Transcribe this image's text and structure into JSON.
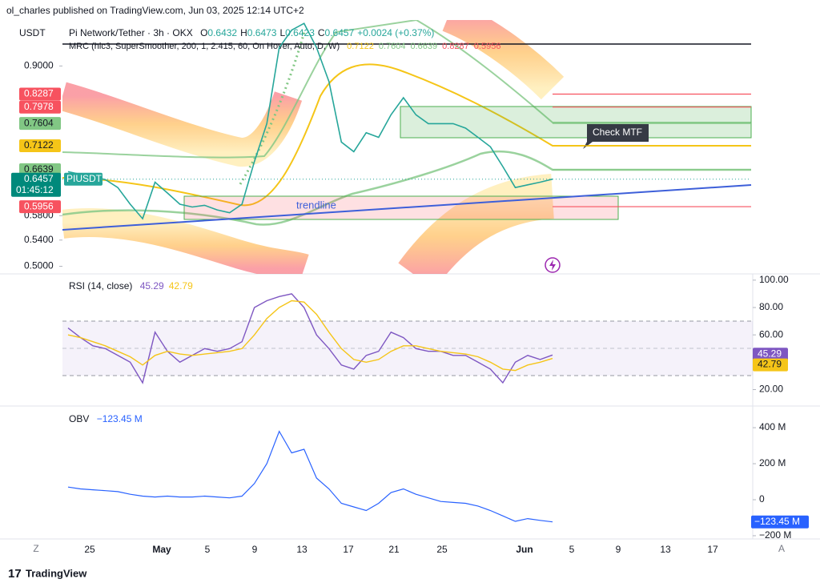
{
  "header": {
    "text": "ol_charles published on TradingView.com, Jun 03, 2025 12:14 UTC+2"
  },
  "footer": {
    "brand": "TradingView",
    "left_button": "Z",
    "right_button": "A"
  },
  "price_pane": {
    "currency": "USDT",
    "symbol_title": "Pi Network/Tether · 3h · OKX",
    "ohlc": [
      {
        "label": "O",
        "value": 0.6432
      },
      {
        "label": "H",
        "value": 0.6473
      },
      {
        "label": "L",
        "value": 0.6423
      },
      {
        "label": "C",
        "value": 0.6457
      }
    ],
    "change": "+0.0024 (+0.37%)",
    "indicator": "MRC (hlc3, SuperSmoother, 200, 1, 2.415, 60, On Hover, Auto, D, W)",
    "ticker": "PIUSDT",
    "last_price": 0.6457,
    "countdown": "01:45:12",
    "log_scale": true,
    "ylim": [
      0.489,
      1.03
    ],
    "yticks": [
      {
        "value": 0.9,
        "label": "0.9000"
      },
      {
        "value": 0.58,
        "label": "0.5800"
      },
      {
        "value": 0.54,
        "label": "0.5400"
      },
      {
        "value": 0.5,
        "label": "0.5000"
      }
    ],
    "levels": [
      {
        "value": 0.8287,
        "color": "#f7525f"
      },
      {
        "value": 0.7978,
        "color": "#f7525f"
      },
      {
        "value": 0.7604,
        "color": "#81c784"
      },
      {
        "value": 0.7122,
        "color": "#f5c518"
      },
      {
        "value": 0.6639,
        "color": "#81c784"
      },
      {
        "value": 0.5956,
        "color": "#f7525f"
      }
    ],
    "price_color": "#26a69a",
    "values": [
      0.66,
      0.655,
      0.65,
      0.645,
      0.63,
      0.6,
      0.575,
      0.64,
      0.62,
      0.6,
      0.595,
      0.598,
      0.59,
      0.585,
      0.6,
      0.68,
      0.76,
      0.95,
      1.0,
      1.02,
      0.95,
      0.86,
      0.72,
      0.7,
      0.74,
      0.73,
      0.78,
      0.82,
      0.78,
      0.76,
      0.76,
      0.76,
      0.75,
      0.73,
      0.71,
      0.67,
      0.63,
      0.635,
      0.64,
      0.6457
    ],
    "annotations": {
      "trendline": "trendline",
      "callout": "Check MTF"
    }
  },
  "rsi_pane": {
    "title": "RSI (14, close)",
    "ylim": [
      8,
      104
    ],
    "yticks": [
      {
        "value": 100,
        "label": "100.00"
      },
      {
        "value": 80,
        "label": "80.00"
      },
      {
        "value": 60,
        "label": "60.00"
      },
      {
        "value": 20,
        "label": "20.00"
      }
    ],
    "series": [
      {
        "name": "RSI",
        "color": "#7e57c2",
        "last": 45.29,
        "values": [
          65,
          58,
          52,
          50,
          45,
          40,
          25,
          62,
          48,
          40,
          45,
          50,
          48,
          50,
          55,
          80,
          85,
          88,
          90,
          80,
          60,
          50,
          38,
          35,
          45,
          48,
          62,
          58,
          50,
          48,
          48,
          45,
          45,
          40,
          35,
          25,
          40,
          45,
          42,
          45.29
        ]
      },
      {
        "name": "RSI-based MA",
        "color": "#f5c518",
        "last": 42.79,
        "values": [
          60,
          58,
          55,
          52,
          48,
          44,
          38,
          45,
          48,
          46,
          45,
          46,
          47,
          48,
          50,
          60,
          72,
          80,
          85,
          84,
          75,
          62,
          50,
          42,
          40,
          42,
          48,
          52,
          52,
          50,
          48,
          47,
          46,
          44,
          40,
          35,
          34,
          38,
          40,
          42.79
        ]
      }
    ]
  },
  "obv_pane": {
    "title": "OBV",
    "color": "#2962ff",
    "last_label": "−123.45 M",
    "ylim": [
      -218,
      507
    ],
    "yticks": [
      {
        "value": 400,
        "label": "400 M"
      },
      {
        "value": 200,
        "label": "200 M"
      },
      0,
      {
        "value": -200,
        "label": "−200 M"
      }
    ],
    "values": [
      70,
      60,
      55,
      50,
      45,
      30,
      20,
      15,
      20,
      15,
      15,
      20,
      15,
      10,
      20,
      90,
      200,
      380,
      260,
      280,
      120,
      60,
      -20,
      -40,
      -60,
      -20,
      40,
      60,
      30,
      10,
      -10,
      -15,
      -20,
      -35,
      -60,
      -90,
      -120,
      -105,
      -115,
      -123.45
    ]
  },
  "x_axis": {
    "labels": [
      "25",
      "May",
      "5",
      "9",
      "13",
      "17",
      "21",
      "25",
      "Jun",
      "5",
      "9",
      "13",
      "17"
    ]
  }
}
